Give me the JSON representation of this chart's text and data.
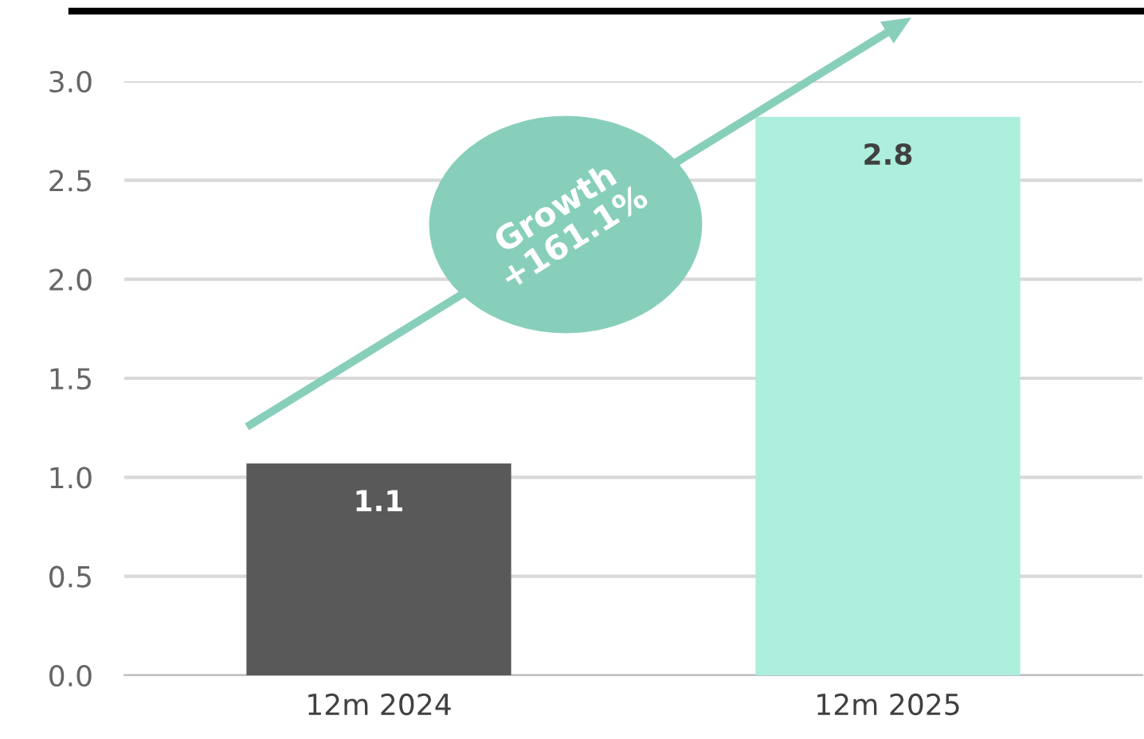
{
  "chart_data": {
    "type": "bar",
    "categories": [
      "12m 2024",
      "12m 2025"
    ],
    "values": [
      1.07,
      2.82
    ],
    "value_labels": [
      "1.1",
      "2.8"
    ],
    "colors": [
      "#595959",
      "#adeedd"
    ],
    "ylim": [
      0,
      3.0
    ],
    "yticks": [
      {
        "value": 0,
        "label": "0.0"
      },
      {
        "value": 0.5,
        "label": "0.5"
      },
      {
        "value": 1.0,
        "label": "1.0"
      },
      {
        "value": 1.5,
        "label": "1.5"
      },
      {
        "value": 2.0,
        "label": "2.0"
      },
      {
        "value": 2.5,
        "label": "2.5"
      },
      {
        "value": 3.0,
        "label": "3.0"
      }
    ],
    "grid": "y",
    "annotations": [
      "Growth\n+161.1%"
    ]
  }
}
